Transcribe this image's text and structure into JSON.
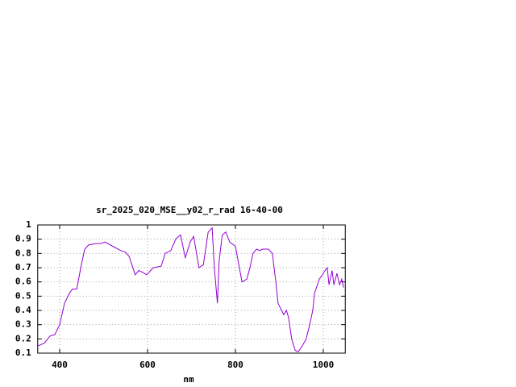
{
  "chart_data": {
    "type": "line",
    "title": "sr_2025_020_MSE__y02_r_rad 16-40-00",
    "x_label": "nm",
    "xlim": [
      350,
      1050
    ],
    "ylim": [
      0.1,
      1
    ],
    "xticks": [
      400,
      600,
      800,
      1000
    ],
    "yticks": [
      0.1,
      0.2,
      0.3,
      0.4,
      0.5,
      0.6,
      0.7,
      0.8,
      0.9,
      1
    ],
    "grid": true,
    "series": [
      {
        "color": "#9400d3",
        "x": [
          350,
          365,
          378,
          389,
          400,
          411,
          422,
          429,
          439,
          448,
          457,
          466,
          484,
          494,
          503,
          521,
          539,
          549,
          558,
          572,
          580,
          587,
          598,
          613,
          631,
          640,
          653,
          664,
          675,
          686,
          697,
          705,
          717,
          727,
          738,
          747,
          752,
          759,
          763,
          770,
          778,
          787,
          800,
          815,
          826,
          833,
          840,
          848,
          855,
          862,
          875,
          884,
          892,
          897,
          910,
          916,
          921,
          928,
          936,
          943,
          952,
          961,
          969,
          976,
          980,
          991,
          998,
          1004,
          1009,
          1013,
          1020,
          1024,
          1031,
          1037,
          1042,
          1046
        ],
        "values": [
          0.15,
          0.17,
          0.22,
          0.23,
          0.3,
          0.45,
          0.52,
          0.55,
          0.55,
          0.7,
          0.83,
          0.86,
          0.87,
          0.87,
          0.88,
          0.85,
          0.82,
          0.81,
          0.78,
          0.65,
          0.68,
          0.67,
          0.65,
          0.7,
          0.71,
          0.8,
          0.82,
          0.9,
          0.93,
          0.77,
          0.88,
          0.92,
          0.7,
          0.72,
          0.95,
          0.98,
          0.7,
          0.45,
          0.75,
          0.93,
          0.95,
          0.88,
          0.85,
          0.6,
          0.62,
          0.7,
          0.8,
          0.83,
          0.82,
          0.83,
          0.83,
          0.8,
          0.6,
          0.45,
          0.37,
          0.4,
          0.35,
          0.2,
          0.12,
          0.11,
          0.15,
          0.2,
          0.3,
          0.4,
          0.52,
          0.62,
          0.65,
          0.68,
          0.7,
          0.58,
          0.68,
          0.58,
          0.66,
          0.58,
          0.62,
          0.56
        ]
      }
    ]
  }
}
